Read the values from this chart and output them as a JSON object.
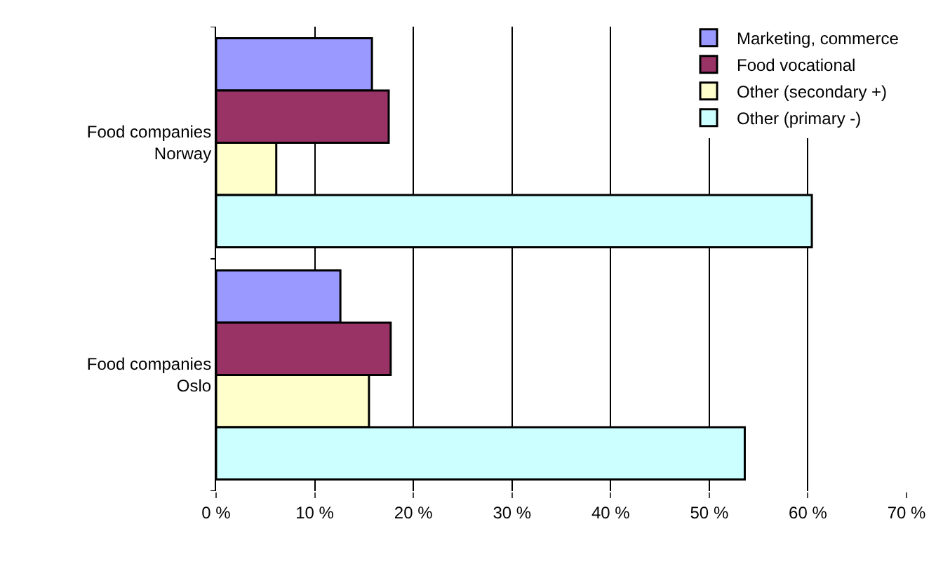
{
  "chart_data": {
    "type": "bar",
    "orientation": "horizontal",
    "categories": [
      "Food companies\nNorway",
      "Food companies\nOslo"
    ],
    "series": [
      {
        "name": "Marketing, commerce",
        "color": "#9999ff",
        "values": [
          15.8,
          12.6
        ]
      },
      {
        "name": "Food vocational",
        "color": "#993366",
        "values": [
          17.5,
          17.7
        ]
      },
      {
        "name": "Other (secondary +)",
        "color": "#ffffcc",
        "values": [
          6.1,
          15.5
        ]
      },
      {
        "name": "Other (primary -)",
        "color": "#ccffff",
        "values": [
          60.4,
          53.6
        ]
      }
    ],
    "xlim": [
      0,
      70
    ],
    "xticks": [
      {
        "value": 0,
        "label": "0 %"
      },
      {
        "value": 10,
        "label": "10 %"
      },
      {
        "value": 20,
        "label": "20 %"
      },
      {
        "value": 30,
        "label": "30 %"
      },
      {
        "value": 40,
        "label": "40 %"
      },
      {
        "value": 50,
        "label": "50 %"
      },
      {
        "value": 60,
        "label": "60 %"
      },
      {
        "value": 70,
        "label": "70 %"
      }
    ],
    "grid": "x",
    "legend": "top right"
  }
}
